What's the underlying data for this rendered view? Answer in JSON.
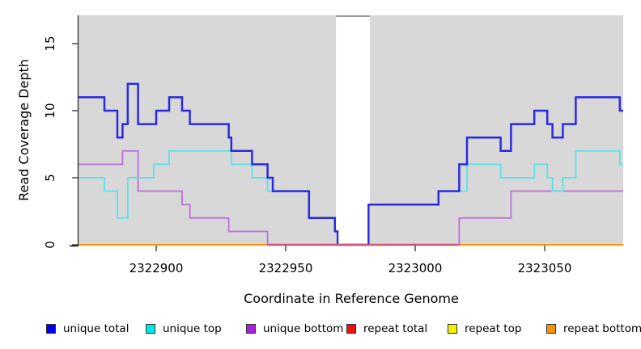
{
  "chart_data": {
    "type": "line",
    "step": true,
    "title": "",
    "xlabel": "Coordinate in Reference Genome",
    "ylabel": "Read Coverage Depth",
    "x_domain": [
      2322870,
      2323080
    ],
    "y_domain": [
      0,
      17.1
    ],
    "x_ticks": [
      2322900,
      2322950,
      2323000,
      2323050
    ],
    "y_ticks": [
      0,
      5,
      10,
      15
    ],
    "panel_bg": "#d8d8d8",
    "gap_region": {
      "x1": 2322969.4,
      "x2": 2322982.5,
      "fill": "#ffffff",
      "top_border_color": "#8a8a8a"
    },
    "zero_overlay": {
      "x1": 2322943,
      "x2": 2323017,
      "color": "#cc5578"
    },
    "series": [
      {
        "name": "repeat top",
        "color": "#f2e71e",
        "points": [
          [
            2322870,
            0
          ]
        ]
      },
      {
        "name": "repeat total",
        "color": "#e03a3a",
        "points": [
          [
            2322870,
            0
          ]
        ]
      },
      {
        "name": "repeat bottom",
        "color": "#ff9204",
        "points": [
          [
            2322870,
            0
          ]
        ]
      },
      {
        "name": "unique bottom",
        "color": "#bb74dd",
        "points": [
          [
            2322870,
            6
          ],
          [
            2322887,
            7
          ],
          [
            2322893,
            4
          ],
          [
            2322910,
            3
          ],
          [
            2322913,
            2
          ],
          [
            2322928,
            1
          ],
          [
            2322943,
            0
          ],
          [
            2323017,
            2
          ],
          [
            2323037,
            4
          ]
        ]
      },
      {
        "name": "unique top",
        "color": "#5fe2e8",
        "points": [
          [
            2322870,
            5
          ],
          [
            2322880,
            4
          ],
          [
            2322885,
            2
          ],
          [
            2322889,
            5
          ],
          [
            2322899,
            6
          ],
          [
            2322905,
            7
          ],
          [
            2322929,
            6
          ],
          [
            2322937,
            5
          ],
          [
            2322943,
            4
          ],
          [
            2322959,
            2
          ],
          [
            2322969,
            1
          ],
          [
            2322970,
            0
          ],
          [
            2322982,
            3
          ],
          [
            2323009,
            4
          ],
          [
            2323020,
            6
          ],
          [
            2323033,
            5
          ],
          [
            2323046,
            6
          ],
          [
            2323051,
            5
          ],
          [
            2323053,
            4
          ],
          [
            2323057,
            5
          ],
          [
            2323062,
            7
          ],
          [
            2323079,
            6
          ]
        ]
      },
      {
        "name": "unique total",
        "color": "#2a2ade",
        "points": [
          [
            2322870,
            11
          ],
          [
            2322880,
            10
          ],
          [
            2322885,
            8
          ],
          [
            2322887,
            9
          ],
          [
            2322889,
            12
          ],
          [
            2322893,
            9
          ],
          [
            2322900,
            10
          ],
          [
            2322905,
            11
          ],
          [
            2322910,
            10
          ],
          [
            2322913,
            9
          ],
          [
            2322928,
            8
          ],
          [
            2322929,
            7
          ],
          [
            2322937,
            6
          ],
          [
            2322943,
            5
          ],
          [
            2322945,
            4
          ],
          [
            2322959,
            2
          ],
          [
            2322969,
            1
          ],
          [
            2322970,
            0
          ],
          [
            2322982,
            3
          ],
          [
            2323009,
            4
          ],
          [
            2323017,
            6
          ],
          [
            2323020,
            8
          ],
          [
            2323033,
            7
          ],
          [
            2323037,
            9
          ],
          [
            2323046,
            10
          ],
          [
            2323051,
            9
          ],
          [
            2323053,
            8
          ],
          [
            2323057,
            9
          ],
          [
            2323062,
            11
          ],
          [
            2323079,
            10
          ]
        ]
      }
    ],
    "legend_position": "bottom"
  },
  "legend": {
    "items": [
      {
        "label": "unique total",
        "swatch": "#0000ee"
      },
      {
        "label": "unique top",
        "swatch": "#00e8ea"
      },
      {
        "label": "unique bottom",
        "swatch": "#a722d8"
      },
      {
        "label": "repeat total",
        "swatch": "#ee1111"
      },
      {
        "label": "repeat top",
        "swatch": "#f2f200"
      },
      {
        "label": "repeat bottom",
        "swatch": "#f59300"
      }
    ]
  }
}
